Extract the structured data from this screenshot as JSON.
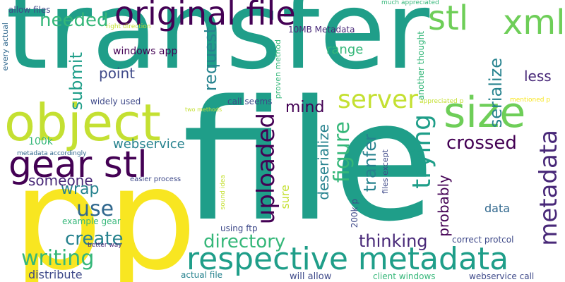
{
  "colors": {
    "background": "#ffffff",
    "teal": "#1f9e89",
    "yellow": "#f8e621",
    "lime": "#c4e032",
    "green": "#6ece58",
    "mint": "#35b779",
    "purple": "#440154",
    "indigo": "#482878",
    "navy": "#3e4989",
    "slate": "#31688e",
    "blue": "#26828e"
  },
  "words": [
    "transfer",
    "file",
    "p",
    "p",
    "object",
    "gear stl",
    "original file",
    "respective metadata",
    "size",
    "stl",
    "xml",
    "needed",
    "server",
    "uploaded",
    "metadata",
    "figure",
    "trying",
    "use",
    "writing",
    "directory",
    "create",
    "submit",
    "request",
    "serialize",
    "tranfer",
    "deserialize",
    "mind",
    "thinking",
    "crossed",
    "wrap",
    "someone",
    "webservice",
    "data",
    "range",
    "point",
    "less",
    "sure",
    "probably",
    "allow files",
    "every actual",
    "right direction",
    "much appreciated",
    "10MB Metadata",
    "proven method",
    "another thought",
    "windows app",
    "widely used",
    "call seems",
    "two methods",
    "appreciated p",
    "mentioned p",
    "100k",
    "metadata accordingly",
    "files except",
    "easier process",
    "sound idea",
    "example gear",
    "using ftp",
    "200k p",
    "correct protcol",
    "better way",
    "distribute",
    "actual file",
    "will allow",
    "client windows",
    "webservice call"
  ]
}
